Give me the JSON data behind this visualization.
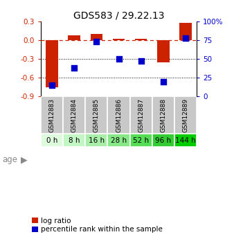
{
  "title": "GDS583 / 29.22.13",
  "samples": [
    "GSM12883",
    "GSM12884",
    "GSM12885",
    "GSM12886",
    "GSM12887",
    "GSM12888",
    "GSM12889"
  ],
  "ages": [
    "0 h",
    "8 h",
    "16 h",
    "28 h",
    "52 h",
    "96 h",
    "144 h"
  ],
  "log_ratios": [
    -0.75,
    0.08,
    0.1,
    0.02,
    0.02,
    -0.35,
    0.28
  ],
  "percentile_ranks": [
    15,
    38,
    73,
    50,
    47,
    20,
    78
  ],
  "bar_color": "#cc2200",
  "dot_color": "#0000cc",
  "ylim_left": [
    -0.9,
    0.3
  ],
  "ylim_right": [
    0,
    100
  ],
  "yticks_left": [
    0.3,
    0.0,
    -0.3,
    -0.6,
    -0.9
  ],
  "yticks_right": [
    100,
    75,
    50,
    25,
    0
  ],
  "ytick_labels_right": [
    "100%",
    "75",
    "50",
    "25",
    "0"
  ],
  "age_colors": [
    "#ddfadd",
    "#c4f5c4",
    "#a8eda8",
    "#88e888",
    "#55dd55",
    "#33cc33",
    "#00cc00"
  ],
  "sample_bg_color": "#c8c8c8",
  "hline_color": "#cc2200",
  "dotline_color": "#000000",
  "bar_width": 0.55,
  "dot_size": 30,
  "age_label": "age",
  "legend_log": "log ratio",
  "legend_pct": "percentile rank within the sample"
}
